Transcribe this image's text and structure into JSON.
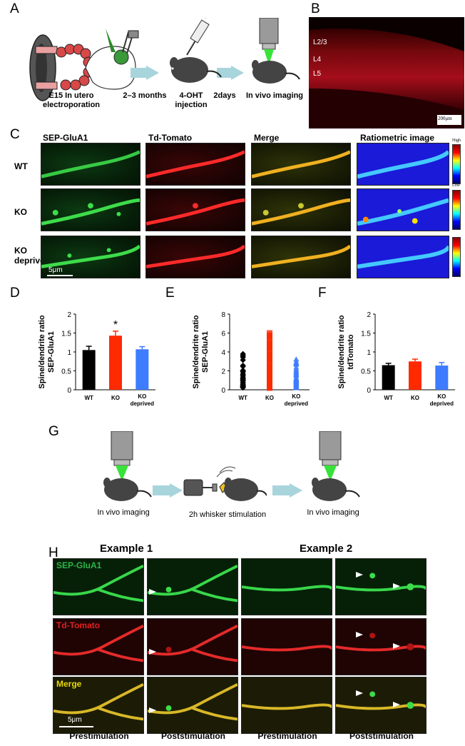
{
  "panel_labels": [
    "A",
    "B",
    "C",
    "D",
    "E",
    "F",
    "G",
    "H"
  ],
  "panelA": {
    "step1": "E15 In utero electroporation",
    "step1_line1": "E15   In utero",
    "step1_line2": "electroporation",
    "interval1": "2–3 months",
    "step2_line1": "4-OHT",
    "step2_line2": "injection",
    "interval2": "2days",
    "step3": "In vivo imaging"
  },
  "panelB": {
    "layers": [
      "L2/3",
      "L4",
      "L5"
    ],
    "scalebar": "200μm"
  },
  "panelC": {
    "columns": [
      "SEP-GluA1",
      "Td-Tomato",
      "Merge",
      "Ratiometric image"
    ],
    "rows": [
      "WT",
      "KO",
      "KO deprived"
    ],
    "row3_line1": "KO",
    "row3_line2": "deprived",
    "scalebar": "5μm",
    "colorbar_high": "High",
    "colorbar_low": "Low"
  },
  "chart_data": [
    {
      "panel": "D",
      "type": "bar",
      "categories": [
        "WT",
        "KO",
        "KO deprived"
      ],
      "values": [
        1.05,
        1.43,
        1.07
      ],
      "errors": [
        0.1,
        0.12,
        0.07
      ],
      "colors": [
        "#000000",
        "#ff2a00",
        "#3d7bff"
      ],
      "ylabel_line1": "Spine/dendrite ratio",
      "ylabel_line2": "SEP-GluA1",
      "ylim": [
        0,
        2
      ],
      "yticks": [
        "0",
        "0.5",
        "1",
        "1.5",
        "2"
      ],
      "significance": "*"
    },
    {
      "panel": "E",
      "type": "scatter",
      "categories": [
        "WT",
        "KO",
        "KO deprived"
      ],
      "markers": [
        "diamond",
        "square",
        "triangle"
      ],
      "colors": [
        "#000000",
        "#ff2a00",
        "#3d7bff"
      ],
      "value_ranges": [
        [
          0.2,
          3.9
        ],
        [
          0.2,
          6.1
        ],
        [
          0.2,
          3.3
        ]
      ],
      "ylabel_line1": "Spine/dendrite ratio",
      "ylabel_line2": "SEP-GluA1",
      "ylim": [
        0,
        8
      ],
      "yticks": [
        "0",
        "2",
        "4",
        "6",
        "8"
      ]
    },
    {
      "panel": "F",
      "type": "bar",
      "categories": [
        "WT",
        "KO",
        "KO deprived"
      ],
      "values": [
        0.65,
        0.75,
        0.64
      ],
      "errors": [
        0.05,
        0.06,
        0.08
      ],
      "colors": [
        "#000000",
        "#ff2a00",
        "#3d7bff"
      ],
      "ylabel_line1": "Spine/dendrite ratio",
      "ylabel_line2": "tdTomato",
      "ylim": [
        0,
        2
      ],
      "yticks": [
        "0",
        "0.5",
        "1",
        "1.5",
        "2"
      ]
    }
  ],
  "xcat": {
    "wt": "WT",
    "ko": "KO",
    "kod_line1": "KO",
    "kod_line2": "deprived"
  },
  "panelG": {
    "step1": "In vivo imaging",
    "step2": "2h whisker stimulation",
    "step3": "In vivo imaging"
  },
  "panelH": {
    "examples": [
      "Example 1",
      "Example 2"
    ],
    "rows": [
      "SEP-GluA1",
      "Td-Tomato",
      "Merge"
    ],
    "footers": [
      "Prestimulation",
      "Poststimulation",
      "Prestimulation",
      "Poststimulation"
    ],
    "scalebar": "5μm",
    "row_colors": [
      "#2fb34a",
      "#e02020",
      "#e8d800"
    ]
  }
}
